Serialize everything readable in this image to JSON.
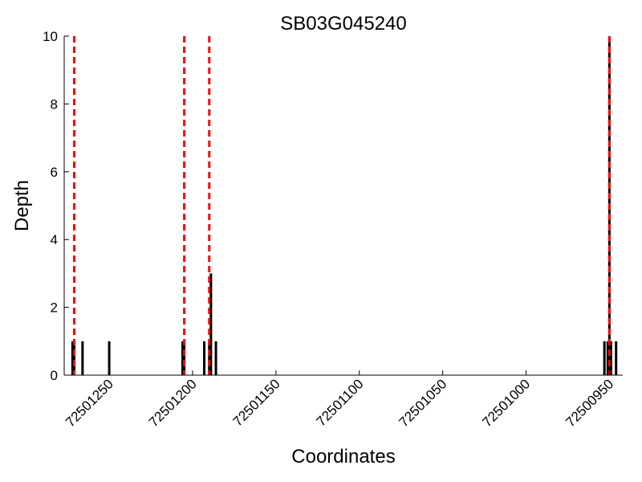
{
  "chart_data": {
    "type": "bar",
    "title": "SB03G045240",
    "xlabel": "Coordinates",
    "ylabel": "Depth",
    "x_reversed": true,
    "xlim": [
      72501277,
      72500942
    ],
    "ylim": [
      0,
      10
    ],
    "x_ticks": [
      72501250,
      72501200,
      72501150,
      72501100,
      72501050,
      72501000,
      72500950
    ],
    "x_tick_labels": [
      "72501250",
      "72501200",
      "72501150",
      "72501100",
      "72501050",
      "72501000",
      "72500950"
    ],
    "y_ticks": [
      0,
      2,
      4,
      6,
      8,
      10
    ],
    "y_tick_labels": [
      "0",
      "2",
      "4",
      "6",
      "8",
      "10"
    ],
    "grid": false,
    "bar_color": "#000000",
    "series": [
      {
        "x": [
          72501272,
          72501271,
          72501266,
          72501250,
          72501206,
          72501205,
          72501193,
          72501190,
          72501189,
          72501186,
          72500953,
          72500951,
          72500950,
          72500949,
          72500946
        ],
        "values": [
          1,
          1,
          1,
          1,
          1,
          1,
          1,
          1,
          3,
          1,
          1,
          1,
          10,
          1,
          1
        ]
      }
    ],
    "reference_lines": {
      "color": "#ff0000",
      "style": "dashed",
      "x": [
        72501271,
        72501205,
        72501190,
        72500950
      ]
    }
  }
}
